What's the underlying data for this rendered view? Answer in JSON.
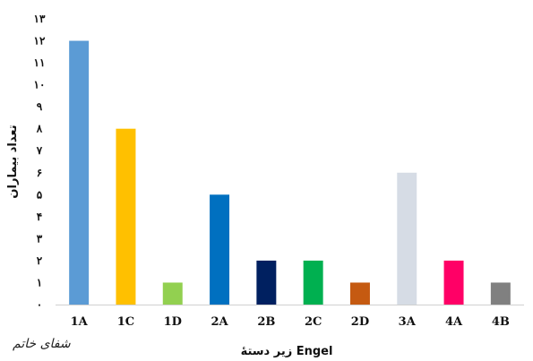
{
  "chart_data": {
    "type": "bar",
    "categories": [
      "1A",
      "1C",
      "1D",
      "2A",
      "2B",
      "2C",
      "2D",
      "3A",
      "4A",
      "4B"
    ],
    "values": [
      12,
      8,
      1,
      5,
      2,
      2,
      1,
      6,
      2,
      1
    ],
    "colors": [
      "#5B9BD5",
      "#FFC000",
      "#92D050",
      "#0070C0",
      "#002060",
      "#00B050",
      "#C55A11",
      "#D6DCE5",
      "#FF0066",
      "#808080"
    ],
    "ylim": [
      0,
      13
    ],
    "yticks": [
      "۰",
      "۱",
      "۲",
      "۳",
      "۴",
      "۵",
      "۶",
      "۷",
      "۸",
      "۹",
      "۱۰",
      "۱۱",
      "۱۲",
      "۱۳"
    ],
    "ylabel": "تعداد بیماران",
    "xlabel": "زیر دستهٔ Engel",
    "grid": false
  },
  "logo_text": "شفای خاتم"
}
